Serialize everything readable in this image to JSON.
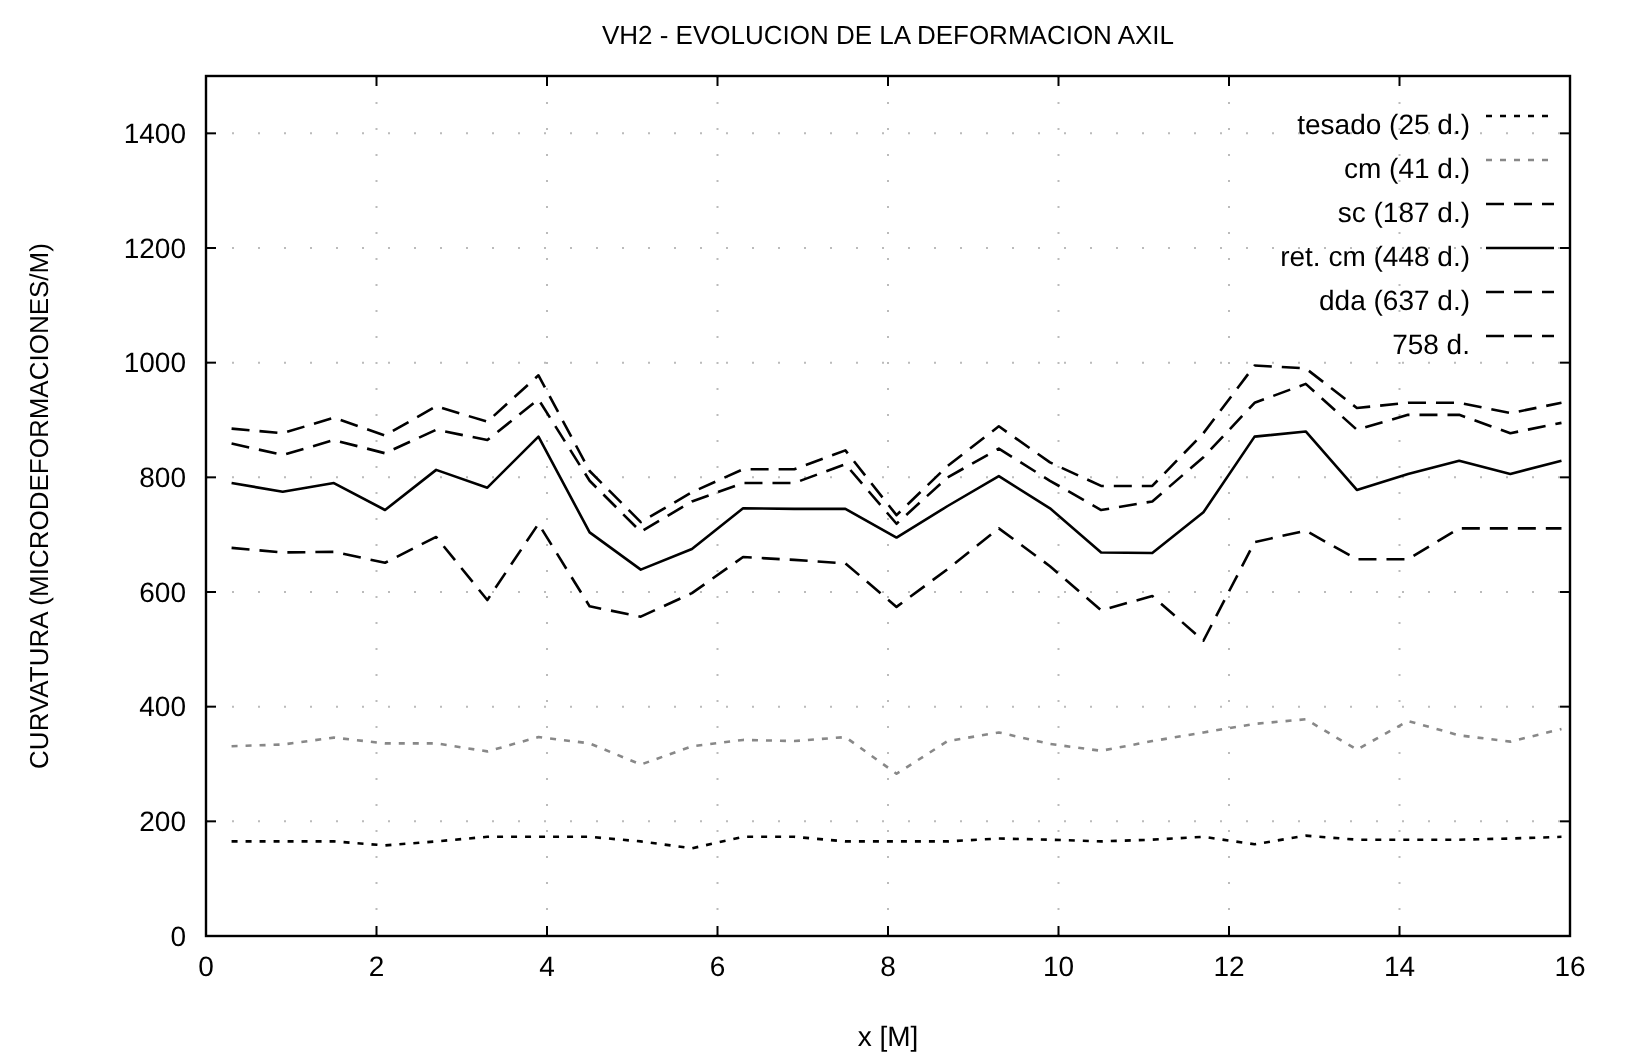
{
  "chart_data": {
    "type": "line",
    "title": "VH2 - EVOLUCION DE LA DEFORMACION AXIL",
    "xlabel": "x [M]",
    "ylabel": "CURVATURA (MICRODEFORMACIONES/M)",
    "x": [
      0.3,
      0.9,
      1.5,
      2.1,
      2.7,
      3.3,
      3.9,
      4.5,
      5.1,
      5.7,
      6.3,
      6.9,
      7.5,
      8.1,
      8.7,
      9.3,
      9.9,
      10.5,
      11.1,
      11.7,
      12.3,
      12.9,
      13.5,
      14.1,
      14.7,
      15.3,
      15.9
    ],
    "series": [
      {
        "name": "tesado (25 d.)",
        "color": "#000000",
        "line_style": "dotted",
        "values": [
          165,
          165,
          165,
          158,
          165,
          173,
          173,
          173,
          165,
          153,
          173,
          173,
          165,
          165,
          165,
          170,
          168,
          165,
          168,
          173,
          160,
          175,
          168,
          168,
          168,
          170,
          173
        ]
      },
      {
        "name": "cm (41 d.)",
        "color": "#888888",
        "line_style": "dotted",
        "values": [
          331,
          334,
          346,
          336,
          336,
          322,
          347,
          336,
          299,
          331,
          342,
          340,
          347,
          283,
          340,
          355,
          335,
          323,
          340,
          355,
          370,
          378,
          325,
          375,
          350,
          339,
          361
        ]
      },
      {
        "name": "sc (187 d.)",
        "color": "#000000",
        "line_style": "dashed",
        "values": [
          677,
          669,
          670,
          651,
          696,
          586,
          719,
          575,
          557,
          598,
          661,
          656,
          650,
          574,
          640,
          711,
          645,
          568,
          593,
          515,
          687,
          707,
          657,
          657,
          711,
          711,
          711
        ]
      },
      {
        "name": "ret. cm (448 d.)",
        "color": "#000000",
        "line_style": "solid",
        "values": [
          790,
          775,
          790,
          743,
          813,
          782,
          871,
          704,
          639,
          675,
          746,
          745,
          745,
          695,
          750,
          802,
          746,
          669,
          668,
          739,
          871,
          880,
          778,
          806,
          829,
          806,
          829
        ]
      },
      {
        "name": "dda (637 d.)",
        "color": "#000000",
        "line_style": "dashed",
        "values": [
          859,
          839,
          865,
          842,
          883,
          865,
          936,
          794,
          705,
          758,
          790,
          790,
          823,
          719,
          800,
          850,
          794,
          743,
          758,
          835,
          930,
          963,
          883,
          909,
          909,
          877,
          895
        ]
      },
      {
        "name": "758 d.",
        "color": "#000000",
        "line_style": "dashed",
        "values": [
          885,
          877,
          904,
          873,
          924,
          897,
          978,
          811,
          722,
          774,
          814,
          814,
          847,
          734,
          820,
          889,
          826,
          785,
          785,
          877,
          995,
          990,
          921,
          930,
          930,
          912,
          930
        ]
      }
    ],
    "xlim": [
      0,
      16
    ],
    "xticks": [
      0,
      2,
      4,
      6,
      8,
      10,
      12,
      14,
      16
    ],
    "ylim": [
      0,
      1500
    ],
    "yticks": [
      0,
      200,
      400,
      600,
      800,
      1000,
      1200,
      1400
    ],
    "grid": true,
    "legend": "top right",
    "marker": "none"
  }
}
